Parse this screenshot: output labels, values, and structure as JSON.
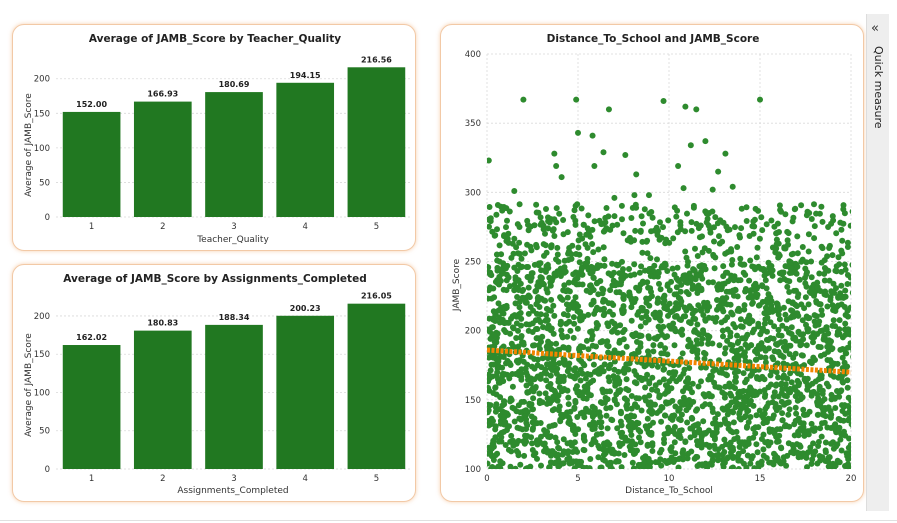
{
  "colors": {
    "bar": "#217821",
    "point": "#2e8b2e",
    "trend": "#f28500"
  },
  "side_panel": {
    "icon": "chevron-double-left-icon",
    "label": "Quick measure"
  },
  "chart_data": [
    {
      "type": "bar",
      "title": "Average of JAMB_Score by Teacher_Quality",
      "xlabel": "Teacher_Quality",
      "ylabel": "Average of JAMB_Score",
      "categories": [
        "1",
        "2",
        "3",
        "4",
        "5"
      ],
      "values": [
        152.0,
        166.93,
        180.69,
        194.15,
        216.56
      ],
      "data_labels": [
        "152.00",
        "166.93",
        "180.69",
        "194.15",
        "216.56"
      ],
      "yticks": [
        0,
        50,
        100,
        150,
        200
      ],
      "ylim": [
        0,
        230
      ],
      "grid": true
    },
    {
      "type": "bar",
      "title": "Average of JAMB_Score by Assignments_Completed",
      "xlabel": "Assignments_Completed",
      "ylabel": "Average of JAMB_Score",
      "categories": [
        "1",
        "2",
        "3",
        "4",
        "5"
      ],
      "values": [
        162.02,
        180.83,
        188.34,
        200.23,
        216.05
      ],
      "data_labels": [
        "162.02",
        "180.83",
        "188.34",
        "200.23",
        "216.05"
      ],
      "yticks": [
        0,
        50,
        100,
        150,
        200
      ],
      "ylim": [
        0,
        230
      ],
      "grid": true
    },
    {
      "type": "scatter",
      "title": "Distance_To_School and JAMB_Score",
      "xlabel": "Distance_To_School",
      "ylabel": "JAMB_Score",
      "xticks": [
        0,
        5,
        10,
        15,
        20
      ],
      "yticks": [
        100,
        150,
        200,
        250,
        300,
        350,
        400
      ],
      "xlim": [
        0,
        20
      ],
      "ylim": [
        100,
        400
      ],
      "grid": true,
      "points": [
        [
          0.1,
          323
        ],
        [
          2.0,
          367
        ],
        [
          4.9,
          367
        ],
        [
          9.7,
          366
        ],
        [
          10.9,
          362
        ],
        [
          11.5,
          360
        ],
        [
          6.7,
          360
        ],
        [
          5.0,
          343
        ],
        [
          5.8,
          341
        ],
        [
          12.0,
          337
        ],
        [
          11.2,
          334
        ],
        [
          3.7,
          328
        ],
        [
          6.4,
          329
        ],
        [
          7.6,
          327
        ],
        [
          13.1,
          328
        ],
        [
          3.8,
          319
        ],
        [
          5.9,
          319
        ],
        [
          10.5,
          319
        ],
        [
          12.7,
          315
        ],
        [
          8.2,
          313
        ],
        [
          4.1,
          311
        ],
        [
          13.5,
          304
        ],
        [
          1.5,
          301
        ],
        [
          10.8,
          303
        ],
        [
          8.1,
          298
        ],
        [
          8.9,
          298
        ],
        [
          2.7,
          291
        ],
        [
          15.0,
          367
        ],
        [
          12.4,
          302
        ],
        [
          7.0,
          296
        ]
      ],
      "trend": {
        "x": [
          0,
          20
        ],
        "y": [
          186,
          170
        ]
      }
    }
  ]
}
